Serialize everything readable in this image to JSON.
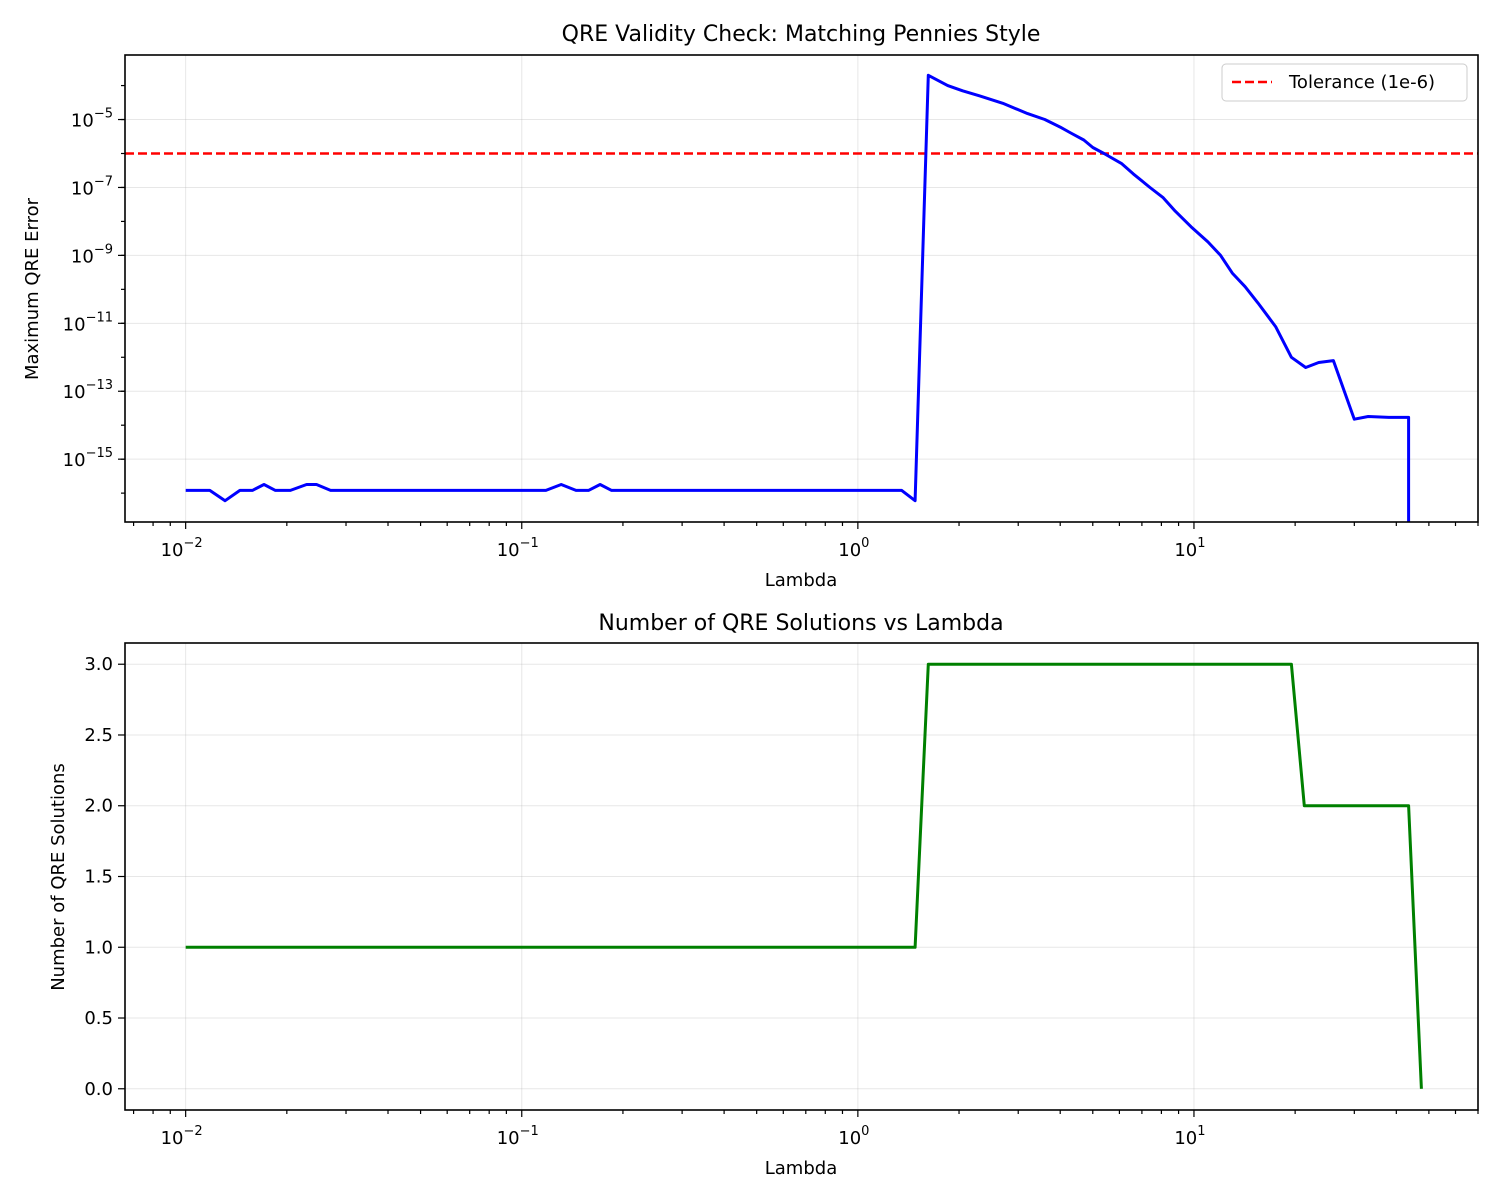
{
  "chart_data": [
    {
      "type": "line",
      "title": "QRE Validity Check: Matching Pennies Style",
      "xlabel": "Lambda",
      "ylabel": "Maximum QRE Error",
      "xscale": "log",
      "yscale": "log",
      "xlim": [
        0.0066,
        70
      ],
      "ylim_exponent": [
        -16.85,
        -3.1
      ],
      "grid": true,
      "legend_placement": "top-right",
      "x_ticks": [
        {
          "value": 0.01,
          "base": "10",
          "exp": "−2"
        },
        {
          "value": 0.1,
          "base": "10",
          "exp": "−1"
        },
        {
          "value": 1,
          "base": "10",
          "exp": "0"
        },
        {
          "value": 10,
          "base": "10",
          "exp": "1"
        }
      ],
      "y_ticks": [
        {
          "value": 1e-15,
          "base": "10",
          "exp": "−15"
        },
        {
          "value": 1e-13,
          "base": "10",
          "exp": "−13"
        },
        {
          "value": 1e-11,
          "base": "10",
          "exp": "−11"
        },
        {
          "value": 1e-09,
          "base": "10",
          "exp": "−9"
        },
        {
          "value": 1e-07,
          "base": "10",
          "exp": "−7"
        },
        {
          "value": 1e-05,
          "base": "10",
          "exp": "−5"
        }
      ],
      "reference_line": {
        "name": "Tolerance (1e-6)",
        "y": 1e-06,
        "color": "#ff0000",
        "style": "dashed"
      },
      "series": [
        {
          "color": "#0000ff",
          "x": [
            0.01,
            0.0118,
            0.0131,
            0.0145,
            0.0158,
            0.0171,
            0.0185,
            0.0205,
            0.0229,
            0.0245,
            0.027,
            0.05,
            0.1,
            0.118,
            0.131,
            0.145,
            0.158,
            0.171,
            0.185,
            0.3,
            0.6,
            1.0,
            1.35,
            1.48,
            1.62,
            1.85,
            2.05,
            2.3,
            2.7,
            3.2,
            3.6,
            4.0,
            4.3,
            4.7,
            5.0,
            5.4,
            6.1,
            6.6,
            7.4,
            8.1,
            8.8,
            9.8,
            11.0,
            12.0,
            13.0,
            14.2,
            15.5,
            17.5,
            19.5,
            21.5,
            23.5,
            26.0,
            28.0,
            30.0,
            33.0,
            38.0,
            43.5,
            43.5
          ],
          "y": [
            1.2e-16,
            1.2e-16,
            6e-17,
            1.2e-16,
            1.2e-16,
            1.8e-16,
            1.2e-16,
            1.2e-16,
            1.8e-16,
            1.8e-16,
            1.2e-16,
            1.2e-16,
            1.2e-16,
            1.2e-16,
            1.8e-16,
            1.2e-16,
            1.2e-16,
            1.8e-16,
            1.2e-16,
            1.2e-16,
            1.2e-16,
            1.2e-16,
            1.2e-16,
            6e-17,
            0.0002,
            0.0001,
            7e-05,
            5e-05,
            3e-05,
            1.5e-05,
            1e-05,
            6e-06,
            4e-06,
            2.5e-06,
            1.5e-06,
            1e-06,
            5e-07,
            2.5e-07,
            1e-07,
            5e-08,
            2e-08,
            7e-09,
            2.5e-09,
            1e-09,
            3e-10,
            1.2e-10,
            4e-11,
            8e-12,
            1e-12,
            5e-13,
            7e-13,
            8e-13,
            1e-13,
            1.5e-14,
            1.8e-14,
            1.7e-14,
            1.7e-14,
            1e-17
          ]
        }
      ]
    },
    {
      "type": "line",
      "title": "Number of QRE Solutions vs Lambda",
      "xlabel": "Lambda",
      "ylabel": "Number of QRE Solutions",
      "xscale": "log",
      "yscale": "linear",
      "xlim": [
        0.0066,
        70
      ],
      "ylim": [
        -0.15,
        3.15
      ],
      "grid": true,
      "x_ticks": [
        {
          "value": 0.01,
          "base": "10",
          "exp": "−2"
        },
        {
          "value": 0.1,
          "base": "10",
          "exp": "−1"
        },
        {
          "value": 1,
          "base": "10",
          "exp": "0"
        },
        {
          "value": 10,
          "base": "10",
          "exp": "1"
        }
      ],
      "y_ticks": [
        {
          "value": 0,
          "label": "0.0"
        },
        {
          "value": 0.5,
          "label": "0.5"
        },
        {
          "value": 1,
          "label": "1.0"
        },
        {
          "value": 1.5,
          "label": "1.5"
        },
        {
          "value": 2,
          "label": "2.0"
        },
        {
          "value": 2.5,
          "label": "2.5"
        },
        {
          "value": 3,
          "label": "3.0"
        }
      ],
      "series": [
        {
          "color": "#008000",
          "x": [
            0.01,
            1.48,
            1.62,
            19.5,
            21.3,
            43.5,
            47.5
          ],
          "y": [
            1,
            1,
            3,
            3,
            2,
            2,
            0
          ]
        }
      ]
    }
  ]
}
